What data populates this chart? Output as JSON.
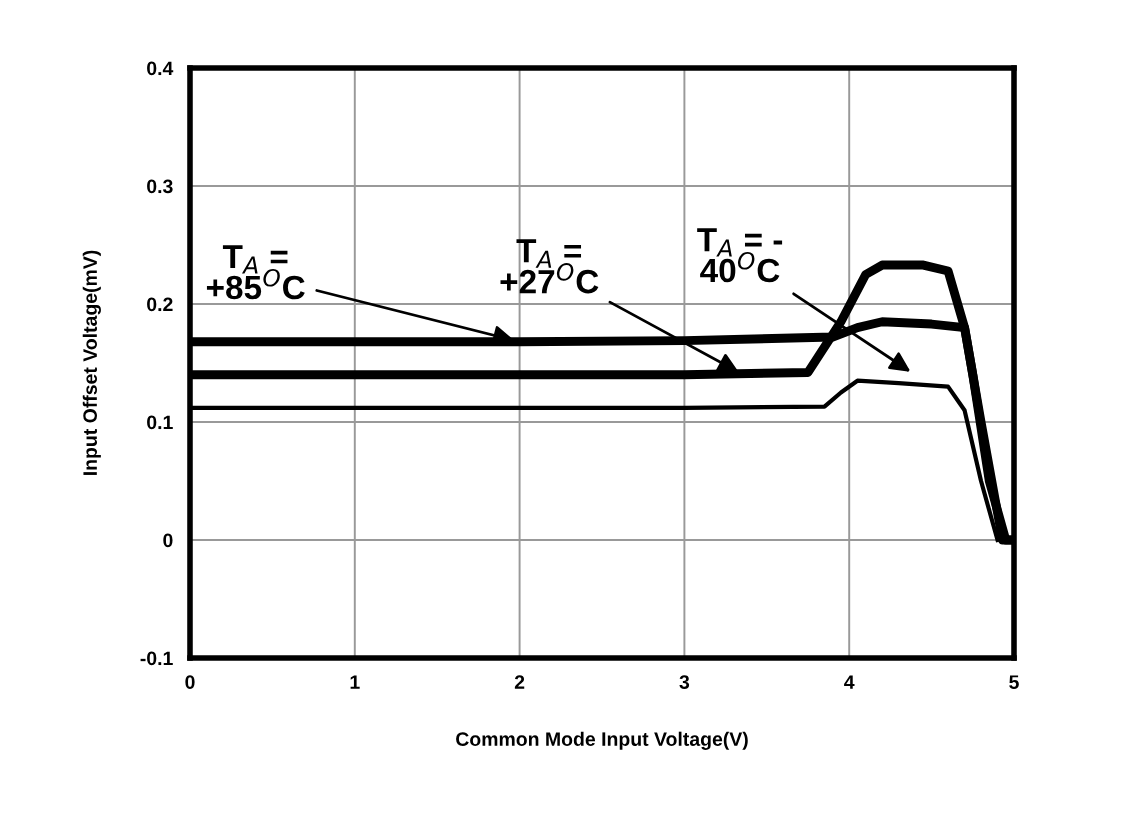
{
  "chart_data": {
    "type": "line",
    "xlabel": "Common Mode Input Voltage(V)",
    "ylabel": "Input Offset Voltage(mV)",
    "series": [
      {
        "color": "#000000",
        "x": [
          0,
          1,
          2,
          3,
          3.9,
          4.05,
          4.2,
          4.5,
          4.7,
          4.75,
          4.85,
          4.95,
          5
        ],
        "values": [
          0.168,
          0.168,
          0.168,
          0.169,
          0.172,
          0.18,
          0.185,
          0.183,
          0.18,
          0.14,
          0.05,
          0,
          0
        ]
      },
      {
        "color": "#000000",
        "x": [
          0,
          1,
          2,
          3,
          3.75,
          3.95,
          4.1,
          4.2,
          4.45,
          4.6,
          4.7,
          4.8,
          4.93,
          5
        ],
        "values": [
          0.14,
          0.14,
          0.14,
          0.14,
          0.142,
          0.185,
          0.225,
          0.233,
          0.233,
          0.228,
          0.18,
          0.1,
          0,
          0
        ]
      },
      {
        "color": "#000000",
        "x": [
          0,
          1,
          2,
          3,
          3.85,
          3.95,
          4.05,
          4.3,
          4.6,
          4.7,
          4.8,
          4.9
        ],
        "values": [
          0.112,
          0.112,
          0.112,
          0.112,
          0.113,
          0.125,
          0.135,
          0.133,
          0.13,
          0.11,
          0.05,
          0
        ]
      }
    ],
    "annotations": [
      {
        "text": "T$_{A}$ =\n+85$^{O}$C",
        "x": 2.0,
        "y": 0.168
      },
      {
        "text": "T$_{A}$ =\n+27$^{O}$C",
        "x": 3.36,
        "y": 0.14
      },
      {
        "text": "T$_{A}$ = -\n40$^{O}$C",
        "x": 4.4,
        "y": 0.14
      }
    ],
    "xlim": [
      0,
      5
    ],
    "xticks": [
      0,
      1,
      2,
      3,
      4,
      5
    ],
    "ylim": [
      -0.1,
      0.4
    ],
    "yticks": [
      -0.1,
      0,
      0.1,
      0.2,
      0.3,
      0.4
    ],
    "grid": true,
    "legend": false
  }
}
